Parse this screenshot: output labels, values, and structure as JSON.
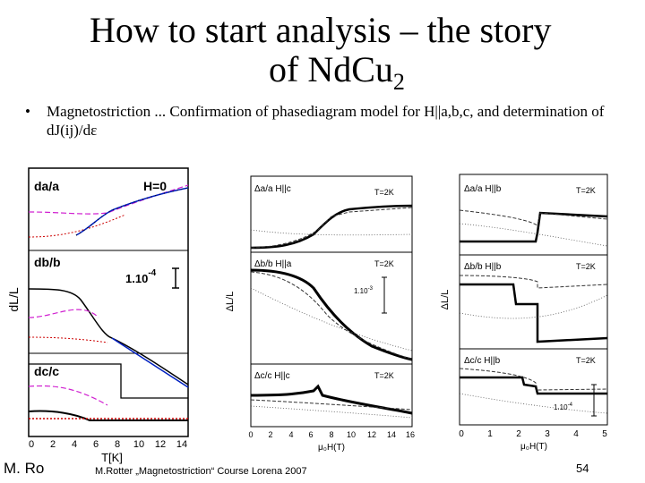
{
  "slide": {
    "title_line1": "How to start analysis – the story",
    "title_line2": "of NdCu",
    "title_sub": "2",
    "bullet_symbol": "•",
    "bullet_text": "Magnetostriction ... Confirmation of phasediagram model for H||a,b,c, and determination of dJ(ij)/dε"
  },
  "left_plot": {
    "ylabel": "dL/L",
    "xlabel": "T[K]",
    "xticks": [
      "0",
      "2",
      "4",
      "6",
      "8",
      "10",
      "12",
      "14"
    ],
    "panels": [
      {
        "label": "da/a",
        "annotation": "H=0"
      },
      {
        "label": "db/b",
        "annotation": "1.10",
        "annotation_sup": "-4"
      },
      {
        "label": "dc/c"
      }
    ]
  },
  "mid_plot": {
    "ylabel": "ΔL/L",
    "xlabel": "μ₀H(T)",
    "xticks": [
      "0",
      "2",
      "4",
      "6",
      "8",
      "10",
      "12",
      "14",
      "16"
    ],
    "panels": [
      {
        "label": "Δa/a  H||c",
        "temp": "T=2K"
      },
      {
        "label": "Δb/b  H||a",
        "temp": "T=2K",
        "scale": "1.10",
        "scale_sup": "-3"
      },
      {
        "label": "Δc/c  H||c",
        "temp": "T=2K"
      }
    ]
  },
  "right_plot": {
    "ylabel": "ΔL/L",
    "xlabel": "μ₀H(T)",
    "xticks": [
      "0",
      "1",
      "2",
      "3",
      "4",
      "5"
    ],
    "panels": [
      {
        "label": "Δa/a  H||b",
        "temp": "T=2K"
      },
      {
        "label": "Δb/b  H||b",
        "temp": "T=2K"
      },
      {
        "label": "Δc/c  H||b",
        "temp": "T=2K",
        "scale": "1.10",
        "scale_sup": "-4"
      }
    ]
  },
  "footer": {
    "author": "M. Ro",
    "course": "M.Rotter „Magnetostriction“ Course Lorena 2007",
    "page": "54"
  }
}
